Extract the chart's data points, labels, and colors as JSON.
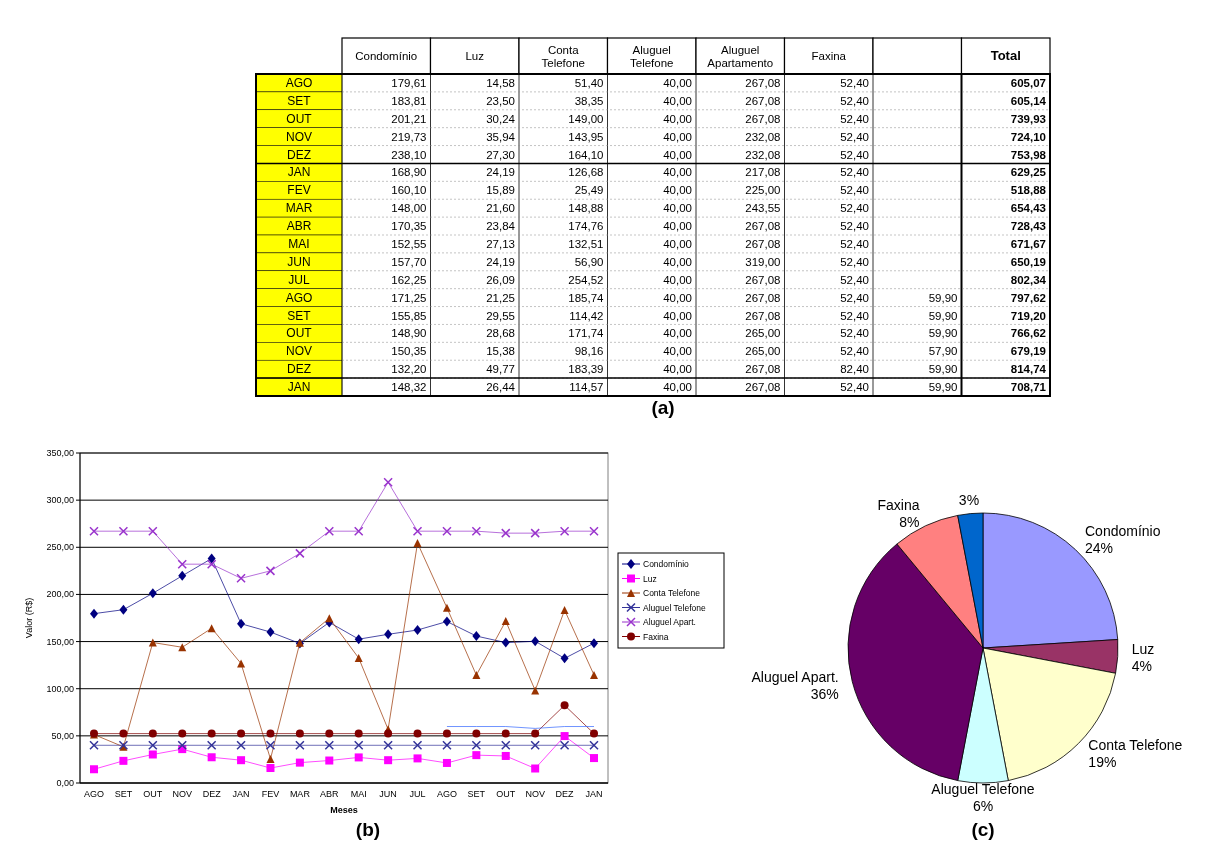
{
  "chart_data": [
    {
      "type": "other",
      "annotations": [
        "(a)"
      ],
      "categories": [
        "AGO",
        "SET",
        "OUT",
        "NOV",
        "DEZ",
        "JAN",
        "FEV",
        "MAR",
        "ABR",
        "MAI",
        "JUN",
        "JUL",
        "AGO",
        "SET",
        "OUT",
        "NOV",
        "DEZ",
        "JAN"
      ],
      "series": [
        {
          "name": "Condomínio",
          "values": [
            179.61,
            183.81,
            201.21,
            219.73,
            238.1,
            168.9,
            160.1,
            148.0,
            170.35,
            152.55,
            157.7,
            162.25,
            171.25,
            155.85,
            148.9,
            150.35,
            132.2,
            148.32
          ],
          "value_labels": [
            "179,61",
            "183,81",
            "201,21",
            "219,73",
            "238,10",
            "168,90",
            "160,10",
            "148,00",
            "170,35",
            "152,55",
            "157,70",
            "162,25",
            "171,25",
            "155,85",
            "148,90",
            "150,35",
            "132,20",
            "148,32"
          ]
        },
        {
          "name": "Luz",
          "values": [
            14.58,
            23.5,
            30.24,
            35.94,
            27.3,
            24.19,
            15.89,
            21.6,
            23.84,
            27.13,
            24.19,
            26.09,
            21.25,
            29.55,
            28.68,
            15.38,
            49.77,
            26.44
          ],
          "value_labels": [
            "14,58",
            "23,50",
            "30,24",
            "35,94",
            "27,30",
            "24,19",
            "15,89",
            "21,60",
            "23,84",
            "27,13",
            "24,19",
            "26,09",
            "21,25",
            "29,55",
            "28,68",
            "15,38",
            "49,77",
            "26,44"
          ]
        },
        {
          "name": "Conta Telefone",
          "values": [
            51.4,
            38.35,
            149.0,
            143.95,
            164.1,
            126.68,
            25.49,
            148.88,
            174.76,
            132.51,
            56.9,
            254.52,
            185.74,
            114.42,
            171.74,
            98.16,
            183.39,
            114.57
          ],
          "value_labels": [
            "51,40",
            "38,35",
            "149,00",
            "143,95",
            "164,10",
            "126,68",
            "25,49",
            "148,88",
            "174,76",
            "132,51",
            "56,90",
            "254,52",
            "185,74",
            "114,42",
            "171,74",
            "98,16",
            "183,39",
            "114,57"
          ]
        },
        {
          "name": "Aluguel Telefone",
          "values": [
            40,
            40,
            40,
            40,
            40,
            40,
            40,
            40,
            40,
            40,
            40,
            40,
            40,
            40,
            40,
            40,
            40,
            40
          ],
          "value_labels": [
            "40,00",
            "40,00",
            "40,00",
            "40,00",
            "40,00",
            "40,00",
            "40,00",
            "40,00",
            "40,00",
            "40,00",
            "40,00",
            "40,00",
            "40,00",
            "40,00",
            "40,00",
            "40,00",
            "40,00",
            "40,00"
          ]
        },
        {
          "name": "Aluguel Apartamento",
          "values": [
            267.08,
            267.08,
            267.08,
            232.08,
            232.08,
            217.08,
            225.0,
            243.55,
            267.08,
            267.08,
            319.0,
            267.08,
            267.08,
            267.08,
            265.0,
            265.0,
            267.08,
            267.08
          ],
          "value_labels": [
            "267,08",
            "267,08",
            "267,08",
            "232,08",
            "232,08",
            "217,08",
            "225,00",
            "243,55",
            "267,08",
            "267,08",
            "319,00",
            "267,08",
            "267,08",
            "267,08",
            "265,00",
            "265,00",
            "267,08",
            "267,08"
          ]
        },
        {
          "name": "Faxina",
          "values": [
            52.4,
            52.4,
            52.4,
            52.4,
            52.4,
            52.4,
            52.4,
            52.4,
            52.4,
            52.4,
            52.4,
            52.4,
            52.4,
            52.4,
            52.4,
            52.4,
            82.4,
            52.4
          ],
          "value_labels": [
            "52,40",
            "52,40",
            "52,40",
            "52,40",
            "52,40",
            "52,40",
            "52,40",
            "52,40",
            "52,40",
            "52,40",
            "52,40",
            "52,40",
            "52,40",
            "52,40",
            "52,40",
            "52,40",
            "82,40",
            "52,40"
          ]
        },
        {
          "values": [
            null,
            null,
            null,
            null,
            null,
            null,
            null,
            null,
            null,
            null,
            null,
            null,
            59.9,
            59.9,
            59.9,
            57.9,
            59.9,
            59.9
          ],
          "value_labels": [
            null,
            null,
            null,
            null,
            null,
            null,
            null,
            null,
            null,
            null,
            null,
            null,
            "59,90",
            "59,90",
            "59,90",
            "57,90",
            "59,90",
            "59,90"
          ]
        },
        {
          "name": "Total",
          "values": [
            605.07,
            605.14,
            739.93,
            724.1,
            753.98,
            629.25,
            518.88,
            654.43,
            728.43,
            671.67,
            650.19,
            802.34,
            797.62,
            719.2,
            766.62,
            679.19,
            814.74,
            708.71
          ],
          "value_labels": [
            "605,07",
            "605,14",
            "739,93",
            "724,10",
            "753,98",
            "629,25",
            "518,88",
            "654,43",
            "728,43",
            "671,67",
            "650,19",
            "802,34",
            "797,62",
            "719,20",
            "766,62",
            "679,19",
            "814,74",
            "708,71"
          ]
        }
      ]
    },
    {
      "type": "line",
      "xlabel": "Meses",
      "ylabel": "Valor (R$)",
      "annotations": [
        "(b)"
      ],
      "legend": "right",
      "grid": "y",
      "ylim": [
        0,
        350
      ],
      "yticks": [
        {
          "value": 0,
          "label": "0,00"
        },
        {
          "value": 50,
          "label": "50,00"
        },
        {
          "value": 100,
          "label": "100,00"
        },
        {
          "value": 150,
          "label": "150,00"
        },
        {
          "value": 200,
          "label": "200,00"
        },
        {
          "value": 250,
          "label": "250,00"
        },
        {
          "value": 300,
          "label": "300,00"
        },
        {
          "value": 350,
          "label": "350,00"
        }
      ],
      "categories": [
        "AGO",
        "SET",
        "OUT",
        "NOV",
        "DEZ",
        "JAN",
        "FEV",
        "MAR",
        "ABR",
        "MAI",
        "JUN",
        "JUL",
        "AGO",
        "SET",
        "OUT",
        "NOV",
        "DEZ",
        "JAN"
      ],
      "series": [
        {
          "name": "Condomínio",
          "color": "#000080",
          "marker": "diamond",
          "values": [
            179.61,
            183.81,
            201.21,
            219.73,
            238.1,
            168.9,
            160.1,
            148.0,
            170.35,
            152.55,
            157.7,
            162.25,
            171.25,
            155.85,
            148.9,
            150.35,
            132.2,
            148.32
          ]
        },
        {
          "name": "Luz",
          "color": "#ff00ff",
          "marker": "square",
          "values": [
            14.58,
            23.5,
            30.24,
            35.94,
            27.3,
            24.19,
            15.89,
            21.6,
            23.84,
            27.13,
            24.19,
            26.09,
            21.25,
            29.55,
            28.68,
            15.38,
            49.77,
            26.44
          ]
        },
        {
          "name": "Conta Telefone",
          "color": "#993300",
          "marker": "triangle",
          "values": [
            51.4,
            38.35,
            149.0,
            143.95,
            164.1,
            126.68,
            25.49,
            148.88,
            174.76,
            132.51,
            56.9,
            254.52,
            185.74,
            114.42,
            171.74,
            98.16,
            183.39,
            114.57
          ]
        },
        {
          "name": "Aluguel Telefone",
          "color": "#333399",
          "marker": "cross",
          "values": [
            40,
            40,
            40,
            40,
            40,
            40,
            40,
            40,
            40,
            40,
            40,
            40,
            40,
            40,
            40,
            40,
            40,
            40
          ]
        },
        {
          "name": "Aluguel Apart.",
          "color": "#9933cc",
          "marker": "cross",
          "values": [
            267.08,
            267.08,
            267.08,
            232.08,
            232.08,
            217.08,
            225.0,
            243.55,
            267.08,
            267.08,
            319.0,
            267.08,
            267.08,
            267.08,
            265.0,
            265.0,
            267.08,
            267.08
          ]
        },
        {
          "name": "Faxina",
          "color": "#800000",
          "marker": "circle",
          "values": [
            52.4,
            52.4,
            52.4,
            52.4,
            52.4,
            52.4,
            52.4,
            52.4,
            52.4,
            52.4,
            52.4,
            52.4,
            52.4,
            52.4,
            52.4,
            52.4,
            82.4,
            52.4
          ]
        },
        {
          "color": "#3366ff",
          "marker": "none",
          "values": [
            null,
            null,
            null,
            null,
            null,
            null,
            null,
            null,
            null,
            null,
            null,
            null,
            59.9,
            59.9,
            59.9,
            57.9,
            59.9,
            59.9
          ]
        }
      ]
    },
    {
      "type": "pie",
      "annotations": [
        "(c)"
      ],
      "categories": [
        "Condomínio",
        "Luz",
        "Conta Telefone",
        "Aluguel Telefone",
        "Aluguel Apart.",
        "Faxina",
        null
      ],
      "values": [
        24,
        4,
        19,
        6,
        36,
        8,
        3
      ],
      "value_labels": [
        "24%",
        "4%",
        "19%",
        "6%",
        "36%",
        "8%",
        "3%"
      ],
      "colors": [
        "#9999ff",
        "#993366",
        "#ffffcc",
        "#ccffff",
        "#660066",
        "#ff8080",
        "#0066cc"
      ]
    }
  ]
}
